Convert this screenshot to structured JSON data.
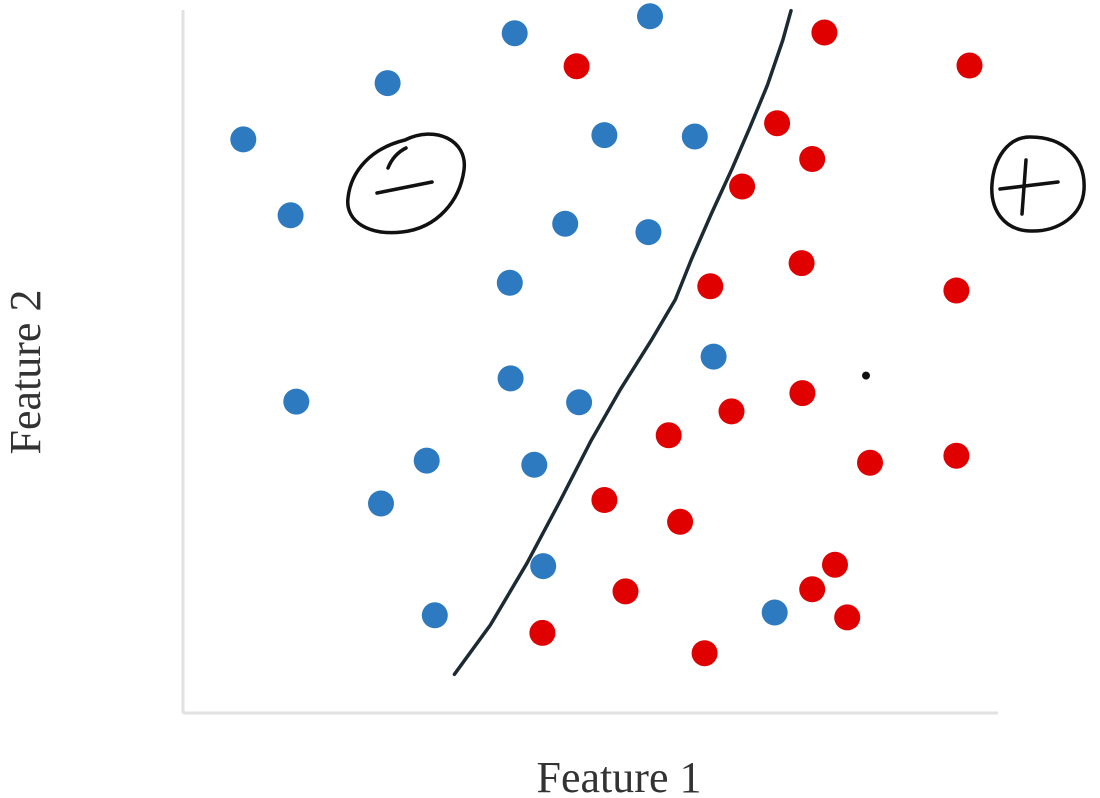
{
  "chart_data": {
    "type": "scatter",
    "xlabel": "Feature 1",
    "ylabel": "Feature 2",
    "xlim": [
      0,
      100
    ],
    "ylim": [
      0,
      100
    ],
    "grid": false,
    "legend": "none",
    "series": [
      {
        "color": "#2e7ac0",
        "marker_label": "−",
        "points": [
          [
            40.7,
            96.7
          ],
          [
            57.3,
            99.1
          ],
          [
            25.1,
            89.6
          ],
          [
            7.4,
            81.6
          ],
          [
            51.7,
            82.2
          ],
          [
            62.8,
            82.0
          ],
          [
            13.2,
            70.8
          ],
          [
            46.9,
            69.6
          ],
          [
            57.1,
            68.4
          ],
          [
            40.1,
            61.2
          ],
          [
            65.1,
            50.7
          ],
          [
            40.2,
            47.6
          ],
          [
            48.6,
            44.2
          ],
          [
            13.9,
            44.3
          ],
          [
            29.9,
            35.9
          ],
          [
            43.1,
            35.3
          ],
          [
            24.3,
            29.8
          ],
          [
            44.2,
            20.9
          ],
          [
            30.9,
            13.9
          ],
          [
            72.6,
            14.3
          ]
        ]
      },
      {
        "color": "#e00000",
        "marker_label": "+",
        "points": [
          [
            78.7,
            96.8
          ],
          [
            48.3,
            92.0
          ],
          [
            96.5,
            92.1
          ],
          [
            72.9,
            83.9
          ],
          [
            77.2,
            78.8
          ],
          [
            68.6,
            74.9
          ],
          [
            75.9,
            64.0
          ],
          [
            64.7,
            60.7
          ],
          [
            94.9,
            60.1
          ],
          [
            76.0,
            45.5
          ],
          [
            67.3,
            42.9
          ],
          [
            59.6,
            39.5
          ],
          [
            84.3,
            35.6
          ],
          [
            94.9,
            36.6
          ],
          [
            51.7,
            30.3
          ],
          [
            61.0,
            27.2
          ],
          [
            80.0,
            21.1
          ],
          [
            77.2,
            17.6
          ],
          [
            54.3,
            17.3
          ],
          [
            81.5,
            13.6
          ],
          [
            44.1,
            11.4
          ],
          [
            64.0,
            8.5
          ]
        ]
      }
    ],
    "decision_boundary": [
      [
        33.3,
        5.5
      ],
      [
        37.7,
        12.5
      ],
      [
        42.2,
        21.3
      ],
      [
        46.2,
        30.0
      ],
      [
        50.1,
        38.8
      ],
      [
        53.7,
        46.1
      ],
      [
        57.4,
        52.9
      ],
      [
        60.4,
        58.8
      ],
      [
        62.4,
        64.6
      ],
      [
        64.9,
        71.2
      ],
      [
        67.4,
        77.5
      ],
      [
        69.6,
        83.4
      ],
      [
        71.7,
        89.3
      ],
      [
        73.6,
        95.7
      ],
      [
        74.6,
        99.9
      ]
    ],
    "extra_point": [
      83.8,
      48.0
    ]
  }
}
